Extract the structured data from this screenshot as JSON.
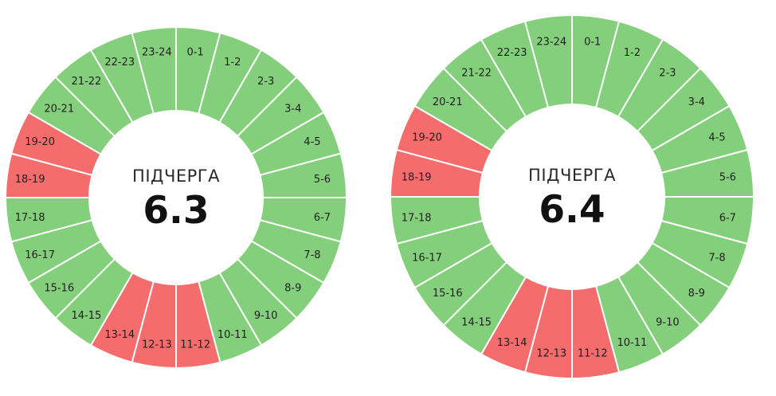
{
  "colors": {
    "on": "#84cf7b",
    "off": "#f46c6c",
    "separator": "#ffffff",
    "center": "#ffffff"
  },
  "chart_data": [
    {
      "type": "pie",
      "title": "ПІДЧЕРГА",
      "value": "6.3",
      "categories": [
        "0-1",
        "1-2",
        "2-3",
        "3-4",
        "4-5",
        "5-6",
        "6-7",
        "7-8",
        "8-9",
        "9-10",
        "10-11",
        "11-12",
        "12-13",
        "13-14",
        "14-15",
        "15-16",
        "16-17",
        "17-18",
        "18-19",
        "19-20",
        "20-21",
        "21-22",
        "22-23",
        "23-24"
      ],
      "off_hours": [
        "11-12",
        "12-13",
        "13-14",
        "18-19",
        "19-20"
      ]
    },
    {
      "type": "pie",
      "title": "ПІДЧЕРГА",
      "value": "6.4",
      "categories": [
        "0-1",
        "1-2",
        "2-3",
        "3-4",
        "4-5",
        "5-6",
        "6-7",
        "7-8",
        "8-9",
        "9-10",
        "10-11",
        "11-12",
        "12-13",
        "13-14",
        "14-15",
        "15-16",
        "16-17",
        "17-18",
        "18-19",
        "19-20",
        "20-21",
        "21-22",
        "22-23",
        "23-24"
      ],
      "off_hours": [
        "11-12",
        "12-13",
        "13-14",
        "18-19",
        "19-20"
      ]
    }
  ]
}
